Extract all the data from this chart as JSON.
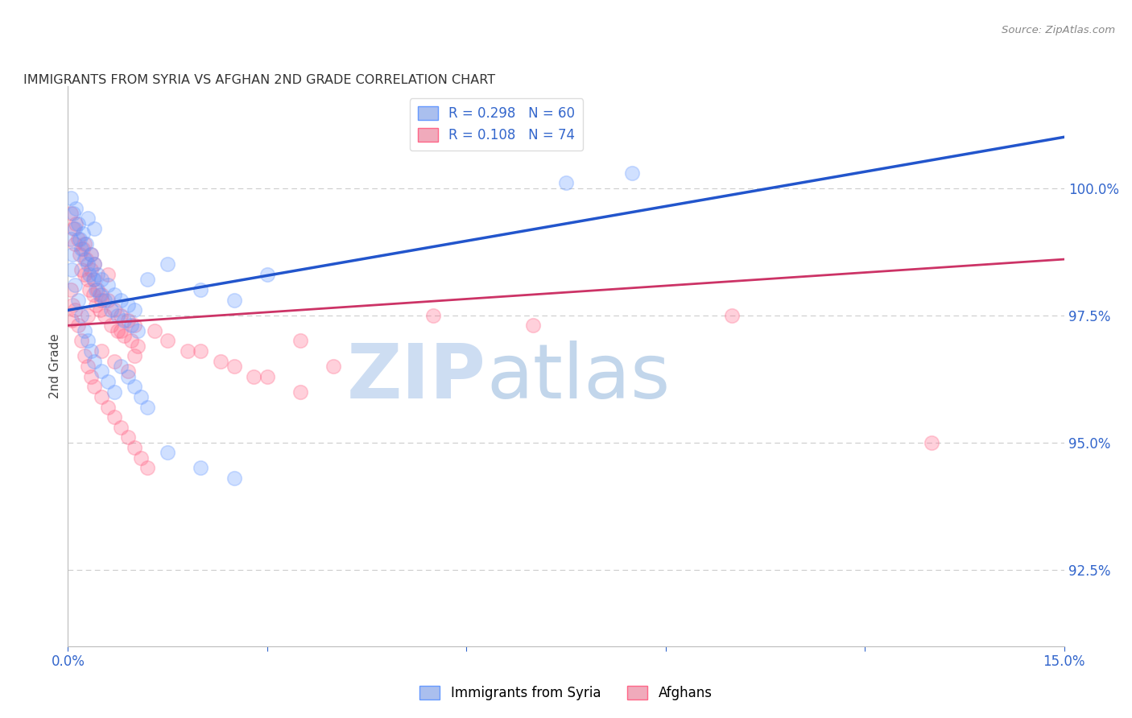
{
  "title": "IMMIGRANTS FROM SYRIA VS AFGHAN 2ND GRADE CORRELATION CHART",
  "source": "Source: ZipAtlas.com",
  "ylabel": "2nd Grade",
  "right_yticks": [
    92.5,
    95.0,
    97.5,
    100.0
  ],
  "right_yticklabels": [
    "92.5%",
    "95.0%",
    "97.5%",
    "100.0%"
  ],
  "xlim": [
    0.0,
    15.0
  ],
  "ylim": [
    91.0,
    102.0
  ],
  "legend_blue_text": "R = 0.298   N = 60",
  "legend_pink_text": "R = 0.108   N = 74",
  "blue_color": "#6699ff",
  "pink_color": "#ff6688",
  "watermark_zip": "ZIP",
  "watermark_atlas": "atlas",
  "blue_scatter": [
    [
      0.05,
      99.8
    ],
    [
      0.08,
      99.5
    ],
    [
      0.1,
      99.2
    ],
    [
      0.12,
      99.6
    ],
    [
      0.15,
      99.3
    ],
    [
      0.18,
      99.0
    ],
    [
      0.2,
      98.8
    ],
    [
      0.22,
      99.1
    ],
    [
      0.25,
      98.6
    ],
    [
      0.28,
      98.9
    ],
    [
      0.3,
      98.5
    ],
    [
      0.32,
      98.3
    ],
    [
      0.35,
      98.7
    ],
    [
      0.38,
      98.2
    ],
    [
      0.4,
      98.5
    ],
    [
      0.42,
      98.0
    ],
    [
      0.45,
      98.3
    ],
    [
      0.48,
      97.9
    ],
    [
      0.5,
      98.2
    ],
    [
      0.55,
      97.8
    ],
    [
      0.6,
      98.1
    ],
    [
      0.65,
      97.6
    ],
    [
      0.7,
      97.9
    ],
    [
      0.75,
      97.5
    ],
    [
      0.8,
      97.8
    ],
    [
      0.85,
      97.4
    ],
    [
      0.9,
      97.7
    ],
    [
      0.95,
      97.3
    ],
    [
      1.0,
      97.6
    ],
    [
      1.05,
      97.2
    ],
    [
      0.1,
      98.1
    ],
    [
      0.15,
      97.8
    ],
    [
      0.2,
      97.5
    ],
    [
      0.25,
      97.2
    ],
    [
      0.3,
      97.0
    ],
    [
      0.35,
      96.8
    ],
    [
      0.4,
      96.6
    ],
    [
      0.5,
      96.4
    ],
    [
      0.6,
      96.2
    ],
    [
      0.7,
      96.0
    ],
    [
      1.2,
      98.2
    ],
    [
      1.5,
      98.5
    ],
    [
      2.0,
      98.0
    ],
    [
      2.5,
      97.8
    ],
    [
      3.0,
      98.3
    ],
    [
      0.8,
      96.5
    ],
    [
      0.9,
      96.3
    ],
    [
      1.0,
      96.1
    ],
    [
      1.1,
      95.9
    ],
    [
      1.2,
      95.7
    ],
    [
      1.5,
      94.8
    ],
    [
      2.0,
      94.5
    ],
    [
      2.5,
      94.3
    ],
    [
      7.5,
      100.1
    ],
    [
      8.5,
      100.3
    ],
    [
      0.05,
      99.0
    ],
    [
      0.07,
      98.7
    ],
    [
      0.06,
      98.4
    ],
    [
      0.3,
      99.4
    ],
    [
      0.4,
      99.2
    ]
  ],
  "pink_scatter": [
    [
      0.05,
      99.5
    ],
    [
      0.08,
      99.2
    ],
    [
      0.1,
      98.9
    ],
    [
      0.12,
      99.3
    ],
    [
      0.15,
      99.0
    ],
    [
      0.18,
      98.7
    ],
    [
      0.2,
      98.4
    ],
    [
      0.22,
      98.8
    ],
    [
      0.25,
      98.3
    ],
    [
      0.28,
      98.6
    ],
    [
      0.3,
      98.2
    ],
    [
      0.32,
      98.0
    ],
    [
      0.35,
      98.4
    ],
    [
      0.38,
      97.9
    ],
    [
      0.4,
      98.2
    ],
    [
      0.42,
      97.7
    ],
    [
      0.45,
      98.0
    ],
    [
      0.48,
      97.6
    ],
    [
      0.5,
      97.9
    ],
    [
      0.55,
      97.5
    ],
    [
      0.6,
      97.8
    ],
    [
      0.65,
      97.3
    ],
    [
      0.7,
      97.6
    ],
    [
      0.75,
      97.2
    ],
    [
      0.8,
      97.5
    ],
    [
      0.85,
      97.1
    ],
    [
      0.9,
      97.4
    ],
    [
      0.95,
      97.0
    ],
    [
      1.0,
      97.3
    ],
    [
      1.05,
      96.9
    ],
    [
      0.1,
      97.6
    ],
    [
      0.15,
      97.3
    ],
    [
      0.2,
      97.0
    ],
    [
      0.25,
      96.7
    ],
    [
      0.3,
      96.5
    ],
    [
      0.35,
      96.3
    ],
    [
      0.4,
      96.1
    ],
    [
      0.5,
      95.9
    ],
    [
      0.6,
      95.7
    ],
    [
      0.7,
      95.5
    ],
    [
      0.8,
      95.3
    ],
    [
      0.9,
      95.1
    ],
    [
      1.0,
      94.9
    ],
    [
      1.1,
      94.7
    ],
    [
      1.2,
      94.5
    ],
    [
      1.5,
      97.0
    ],
    [
      2.0,
      96.8
    ],
    [
      2.5,
      96.5
    ],
    [
      3.0,
      96.3
    ],
    [
      3.5,
      96.0
    ],
    [
      4.0,
      96.5
    ],
    [
      0.3,
      97.5
    ],
    [
      0.5,
      96.8
    ],
    [
      0.7,
      96.6
    ],
    [
      0.9,
      96.4
    ],
    [
      1.3,
      97.2
    ],
    [
      1.8,
      96.8
    ],
    [
      2.3,
      96.6
    ],
    [
      2.8,
      96.3
    ],
    [
      3.5,
      97.0
    ],
    [
      0.4,
      98.5
    ],
    [
      0.6,
      98.3
    ],
    [
      0.5,
      97.8
    ],
    [
      0.8,
      97.2
    ],
    [
      1.0,
      96.7
    ],
    [
      5.5,
      97.5
    ],
    [
      7.0,
      97.3
    ],
    [
      10.0,
      97.5
    ],
    [
      13.0,
      95.0
    ],
    [
      0.05,
      98.0
    ],
    [
      0.07,
      97.7
    ],
    [
      0.06,
      97.4
    ],
    [
      0.25,
      98.9
    ],
    [
      0.35,
      98.7
    ]
  ],
  "blue_line_x": [
    0.0,
    15.0
  ],
  "blue_line_y": [
    97.6,
    101.0
  ],
  "pink_line_x": [
    0.0,
    15.0
  ],
  "pink_line_y": [
    97.3,
    98.6
  ]
}
